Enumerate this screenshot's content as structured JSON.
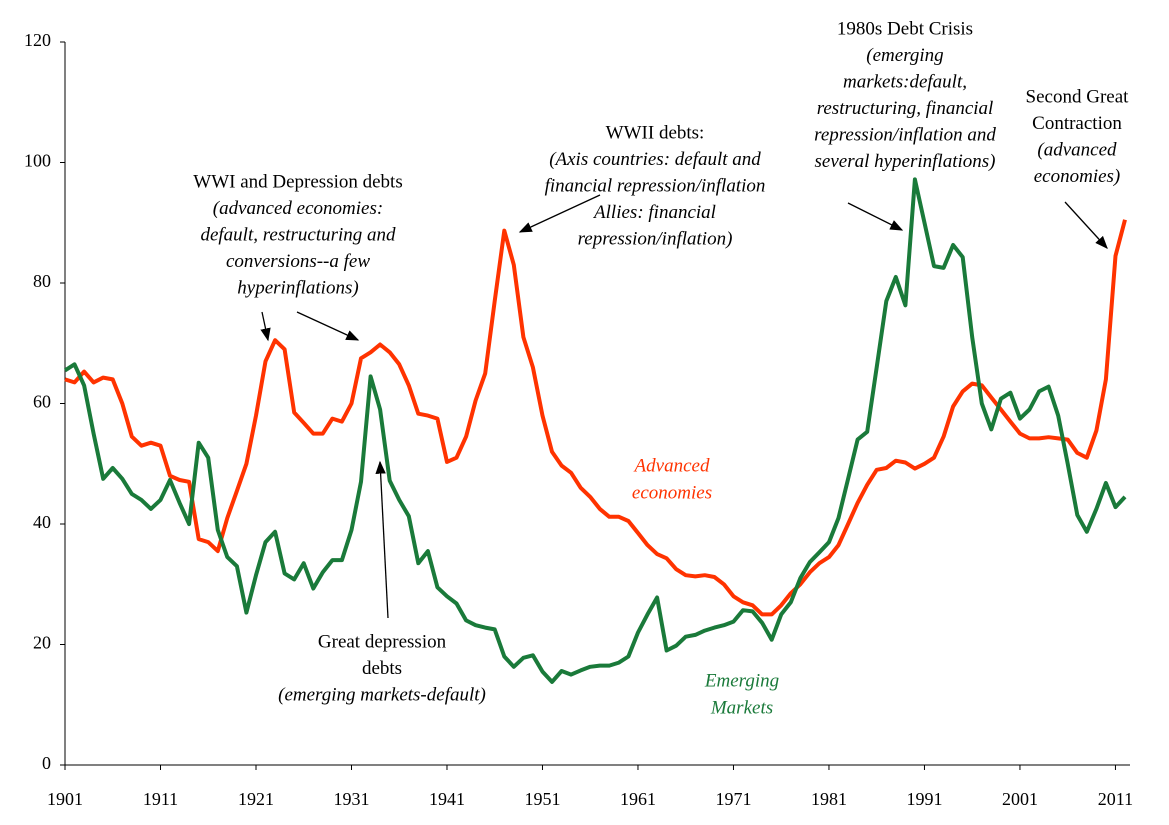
{
  "chart_data": {
    "type": "line",
    "x": [
      1901,
      1902,
      1903,
      1904,
      1905,
      1906,
      1907,
      1908,
      1909,
      1910,
      1911,
      1912,
      1913,
      1914,
      1915,
      1916,
      1917,
      1918,
      1919,
      1920,
      1921,
      1922,
      1923,
      1924,
      1925,
      1926,
      1927,
      1928,
      1929,
      1930,
      1931,
      1932,
      1933,
      1934,
      1935,
      1936,
      1937,
      1938,
      1939,
      1940,
      1941,
      1942,
      1943,
      1944,
      1945,
      1946,
      1947,
      1948,
      1949,
      1950,
      1951,
      1952,
      1953,
      1954,
      1955,
      1956,
      1957,
      1958,
      1959,
      1960,
      1961,
      1962,
      1963,
      1964,
      1965,
      1966,
      1967,
      1968,
      1969,
      1970,
      1971,
      1972,
      1973,
      1974,
      1975,
      1976,
      1977,
      1978,
      1979,
      1980,
      1981,
      1982,
      1983,
      1984,
      1985,
      1986,
      1987,
      1988,
      1989,
      1990,
      1991,
      1992,
      1993,
      1994,
      1995,
      1996,
      1997,
      1998,
      1999,
      2000,
      2001,
      2002,
      2003,
      2004,
      2005,
      2006,
      2007,
      2008,
      2009,
      2010,
      2011,
      2012
    ],
    "series": [
      {
        "label": [
          "Advanced",
          "economies"
        ],
        "color": "#ff3300",
        "values": [
          64,
          63.5,
          65.3,
          63.5,
          64.3,
          64,
          60,
          54.5,
          53,
          53.5,
          53,
          48,
          47.3,
          47,
          37.5,
          37,
          35.5,
          41,
          45.5,
          50,
          58,
          67,
          70.5,
          69,
          58.5,
          56.8,
          55,
          55,
          57.5,
          57,
          60,
          67.5,
          68.5,
          69.8,
          68.5,
          66.5,
          63,
          58.3,
          58,
          57.5,
          50.3,
          51,
          54.5,
          60.5,
          65,
          77,
          88.7,
          83,
          71,
          66,
          58,
          52,
          49.7,
          48.5,
          46,
          44.5,
          42.5,
          41.2,
          41.2,
          40.5,
          38.5,
          36.5,
          35,
          34.3,
          32.5,
          31.5,
          31.3,
          31.5,
          31.2,
          30,
          28,
          27,
          26.5,
          25,
          25,
          26.5,
          28.5,
          30,
          32,
          33.5,
          34.5,
          36.5,
          40,
          43.5,
          46.5,
          49,
          49.3,
          50.5,
          50.2,
          49.2,
          50,
          51,
          54.5,
          59.5,
          62,
          63.3,
          63,
          61,
          59,
          57,
          55,
          54.2,
          54.2,
          54.4,
          54.2,
          54,
          51.8,
          51,
          55.5,
          64,
          84.5,
          90.5
        ]
      },
      {
        "label": [
          "Emerging",
          "Markets"
        ],
        "color": "#1a7a3a",
        "values": [
          65.5,
          66.5,
          63,
          55,
          47.5,
          49.3,
          47.5,
          45,
          44,
          42.5,
          44,
          47.3,
          43.5,
          40,
          53.5,
          51,
          39,
          34.5,
          33,
          25.3,
          31.5,
          37,
          38.7,
          31.8,
          30.8,
          33.5,
          29.3,
          32,
          34,
          34,
          39,
          47,
          64.5,
          59,
          47.2,
          44,
          41.3,
          33.5,
          35.5,
          29.5,
          28,
          26.8,
          24,
          23.2,
          22.8,
          22.5,
          18,
          16.3,
          17.8,
          18.2,
          15.5,
          13.8,
          15.6,
          15,
          15.7,
          16.3,
          16.5,
          16.5,
          17,
          18,
          22,
          25,
          27.8,
          19,
          19.8,
          21.3,
          21.6,
          22.3,
          22.8,
          23.2,
          23.8,
          25.7,
          25.5,
          23.6,
          20.8,
          25,
          27,
          31,
          33.7,
          35.3,
          37,
          41,
          47.5,
          54,
          55.3,
          66,
          77,
          81,
          76.3,
          97.2,
          90,
          82.8,
          82.5,
          86.3,
          84.3,
          71,
          60,
          55.7,
          60.8,
          61.8,
          57.5,
          59,
          62,
          62.8,
          58,
          50,
          41.5,
          38.7,
          42.5,
          46.8,
          42.8,
          44.5
        ]
      }
    ],
    "xlim": [
      1901,
      2012
    ],
    "xticks": [
      1901,
      1911,
      1921,
      1931,
      1941,
      1951,
      1961,
      1971,
      1981,
      1991,
      2001,
      2011
    ],
    "ylim": [
      0,
      120
    ],
    "yticks": [
      0,
      20,
      40,
      60,
      80,
      100,
      120
    ],
    "annotations": [
      {
        "title": [
          "WWI and Depression debts"
        ],
        "note": [
          "(advanced economies:",
          "default, restructuring and",
          "conversions--a few",
          "hyperinflations)"
        ]
      },
      {
        "title": [
          "WWII debts:"
        ],
        "note": [
          "(Axis countries: default and",
          "financial repression/inflation",
          "Allies: financial",
          "repression/inflation)"
        ]
      },
      {
        "title": [
          "1980s Debt Crisis"
        ],
        "note": [
          "(emerging",
          "markets:default,",
          "restructuring, financial",
          "repression/inflation and",
          "several hyperinflations)"
        ]
      },
      {
        "title": [
          "Second Great",
          "Contraction"
        ],
        "note": [
          "(advanced",
          "economies)"
        ]
      },
      {
        "title": [
          "Great depression",
          "debts"
        ],
        "note": [
          "(emerging markets-default)"
        ]
      }
    ]
  }
}
